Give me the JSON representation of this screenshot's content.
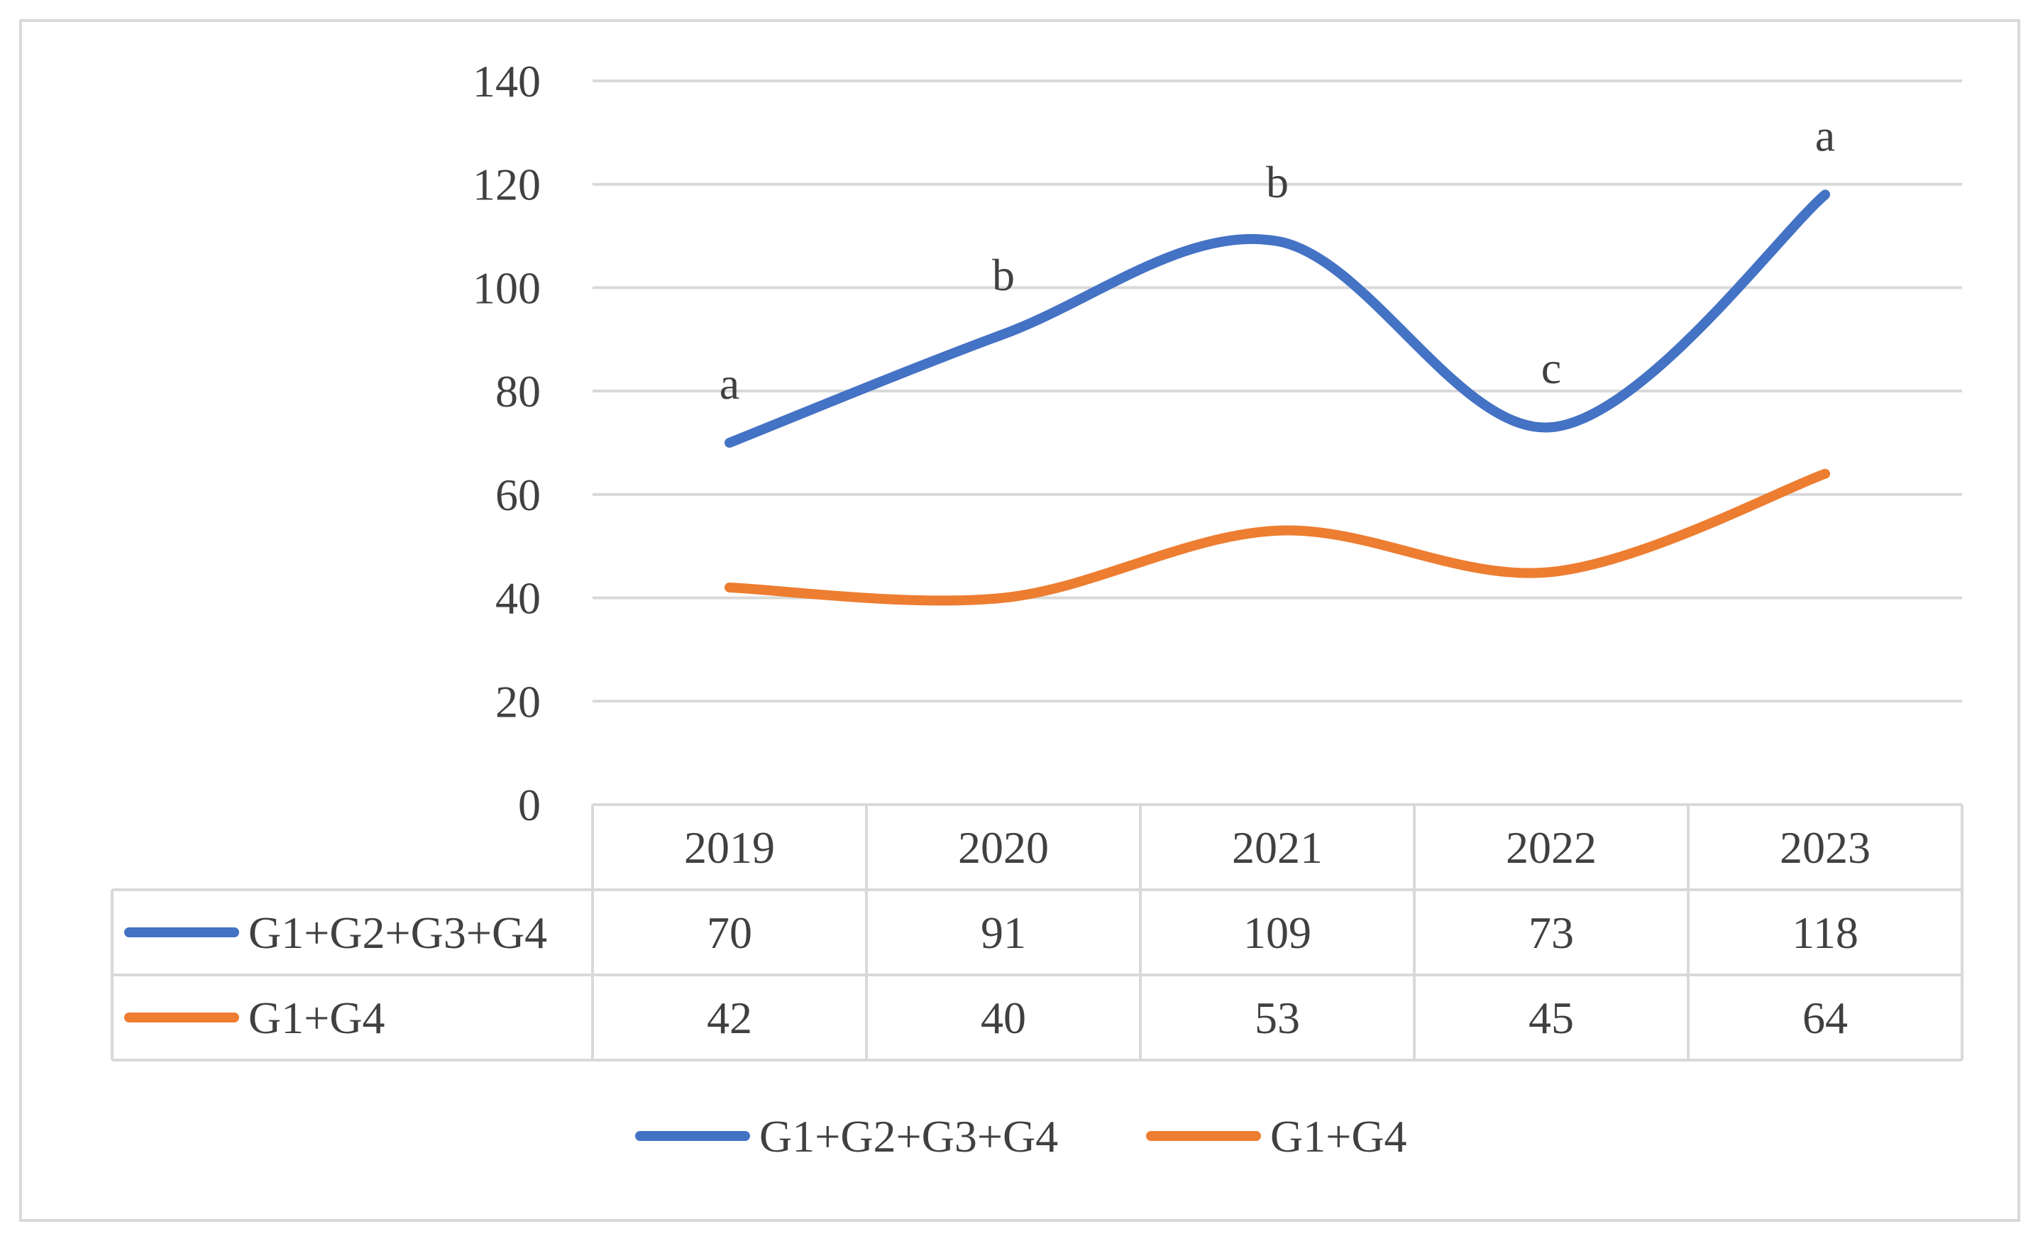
{
  "chart_data": {
    "type": "line",
    "categories": [
      "2019",
      "2020",
      "2021",
      "2022",
      "2023"
    ],
    "series": [
      {
        "name": "G1+G2+G3+G4",
        "values": [
          70,
          91,
          109,
          73,
          118
        ],
        "color": "#4472c4",
        "annotations": [
          "a",
          "b",
          "b",
          "c",
          "a"
        ]
      },
      {
        "name": "G1+G4",
        "values": [
          42,
          40,
          53,
          45,
          64
        ],
        "color": "#ed7d31"
      }
    ],
    "y_ticks": [
      "0",
      "20",
      "40",
      "60",
      "80",
      "100",
      "120",
      "140"
    ],
    "ylim": [
      0,
      140
    ],
    "grid": true,
    "smooth": true,
    "data_table": true,
    "legend_position": "bottom"
  }
}
